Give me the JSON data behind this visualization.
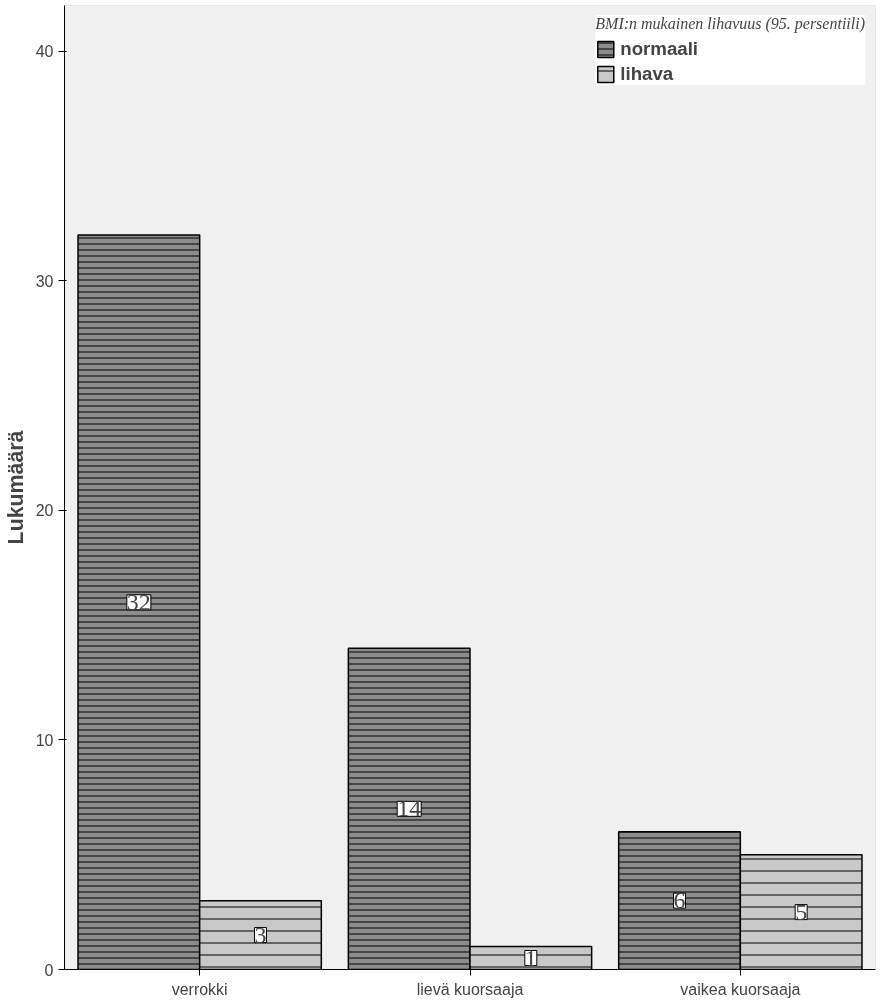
{
  "chart_data": {
    "type": "bar",
    "ylabel": "Lukumäärä",
    "legend_title": "BMI:n mukainen lihavuus (95. persentiili)",
    "categories": [
      "verrokki",
      "lievä kuorsaaja",
      "vaikea kuorsaaja"
    ],
    "series": [
      {
        "name": "normaali",
        "color": "#8c8c8c",
        "values": [
          32,
          14,
          6
        ]
      },
      {
        "name": "lihava",
        "color": "#c8c8c8",
        "values": [
          3,
          1,
          5
        ]
      }
    ],
    "ylim": [
      0,
      42
    ],
    "yticks": [
      0,
      10,
      20,
      30,
      40
    ],
    "grid": false,
    "legend": "top right",
    "data_labels": true
  }
}
